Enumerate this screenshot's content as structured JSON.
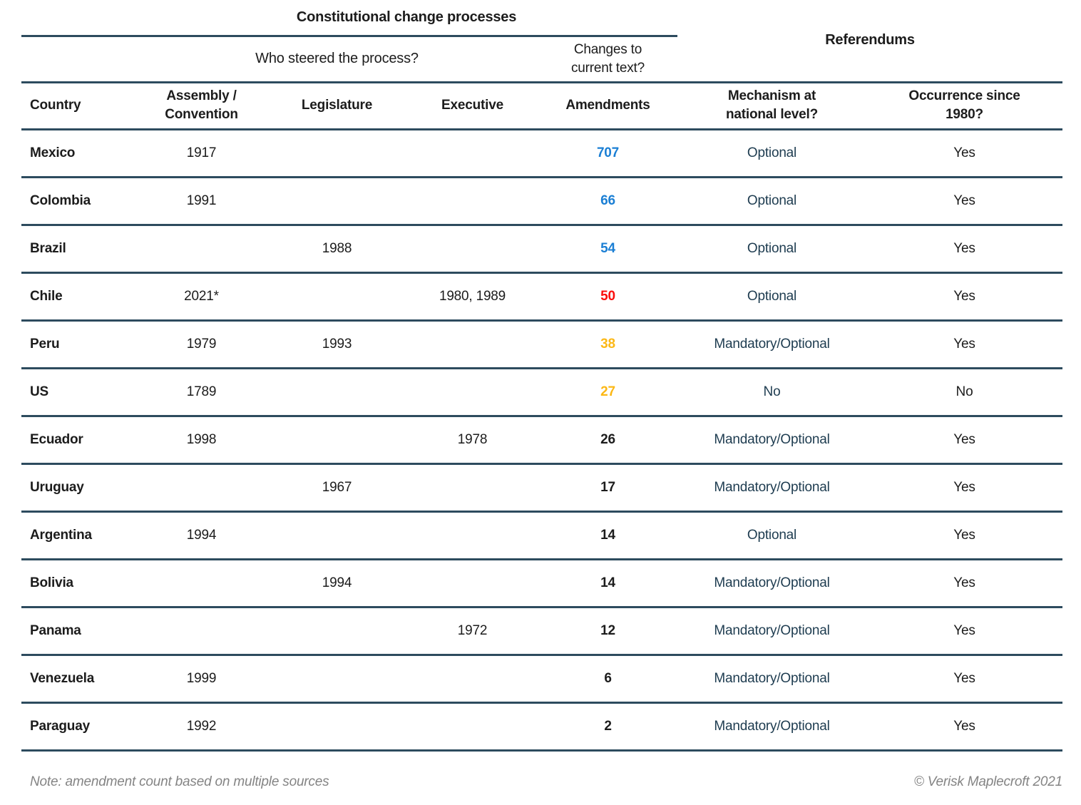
{
  "table": {
    "group_headers": {
      "constitutional": "Constitutional change processes",
      "referendums": "Referendums",
      "who_steered": "Who steered the process?",
      "changes_to_text": "Changes to\ncurrent text?"
    },
    "columns": [
      "Country",
      "Assembly /\nConvention",
      "Legislature",
      "Executive",
      "Amendments",
      "Mechanism at\nnational level?",
      "Occurrence since\n1980?"
    ],
    "rows": [
      {
        "country": "Mexico",
        "assembly": "1917",
        "legislature": "",
        "executive": "",
        "amendments": "707",
        "amendments_color": "blue",
        "mechanism": "Optional",
        "occurrence": "Yes"
      },
      {
        "country": "Colombia",
        "assembly": "1991",
        "legislature": "",
        "executive": "",
        "amendments": "66",
        "amendments_color": "blue",
        "mechanism": "Optional",
        "occurrence": "Yes"
      },
      {
        "country": "Brazil",
        "assembly": "",
        "legislature": "1988",
        "executive": "",
        "amendments": "54",
        "amendments_color": "blue",
        "mechanism": "Optional",
        "occurrence": "Yes"
      },
      {
        "country": "Chile",
        "assembly": "2021*",
        "legislature": "",
        "executive": "1980, 1989",
        "amendments": "50",
        "amendments_color": "red",
        "mechanism": "Optional",
        "occurrence": "Yes"
      },
      {
        "country": "Peru",
        "assembly": "1979",
        "legislature": "1993",
        "executive": "",
        "amendments": "38",
        "amendments_color": "amber",
        "mechanism": "Mandatory/Optional",
        "occurrence": "Yes"
      },
      {
        "country": "US",
        "assembly": "1789",
        "legislature": "",
        "executive": "",
        "amendments": "27",
        "amendments_color": "amber",
        "mechanism": "No",
        "occurrence": "No"
      },
      {
        "country": "Ecuador",
        "assembly": "1998",
        "legislature": "",
        "executive": "1978",
        "amendments": "26",
        "amendments_color": "black",
        "mechanism": "Mandatory/Optional",
        "occurrence": "Yes"
      },
      {
        "country": "Uruguay",
        "assembly": "",
        "legislature": "1967",
        "executive": "",
        "amendments": "17",
        "amendments_color": "black",
        "mechanism": "Mandatory/Optional",
        "occurrence": "Yes"
      },
      {
        "country": "Argentina",
        "assembly": "1994",
        "legislature": "",
        "executive": "",
        "amendments": "14",
        "amendments_color": "black",
        "mechanism": "Optional",
        "occurrence": "Yes"
      },
      {
        "country": "Bolivia",
        "assembly": "",
        "legislature": "1994",
        "executive": "",
        "amendments": "14",
        "amendments_color": "black",
        "mechanism": "Mandatory/Optional",
        "occurrence": "Yes"
      },
      {
        "country": "Panama",
        "assembly": "",
        "legislature": "",
        "executive": "1972",
        "amendments": "12",
        "amendments_color": "black",
        "mechanism": "Mandatory/Optional",
        "occurrence": "Yes"
      },
      {
        "country": "Venezuela",
        "assembly": "1999",
        "legislature": "",
        "executive": "",
        "amendments": "6",
        "amendments_color": "black",
        "mechanism": "Mandatory/Optional",
        "occurrence": "Yes"
      },
      {
        "country": "Paraguay",
        "assembly": "1992",
        "legislature": "",
        "executive": "",
        "amendments": "2",
        "amendments_color": "black",
        "mechanism": "Mandatory/Optional",
        "occurrence": "Yes"
      }
    ]
  },
  "footer": {
    "note": "Note: amendment count based on multiple sources",
    "copyright": "© Verisk Maplecroft 2021"
  },
  "colors": {
    "blue": "#1b7fd4",
    "red": "#fb0d0c",
    "amber": "#fcb816",
    "black": "#1c1c1c",
    "navy_mechanism_text": "#1e3c50",
    "rule_line": "#2d4b5e",
    "footer_gray": "#848484"
  },
  "chart_data": {
    "type": "table",
    "title": "Constitutional change processes",
    "group_headers": [
      {
        "label": "Constitutional change processes",
        "span": [
          "Country",
          "Assembly / Convention",
          "Legislature",
          "Executive",
          "Amendments"
        ]
      },
      {
        "label": "Referendums",
        "span": [
          "Mechanism at national level?",
          "Occurrence since 1980?"
        ]
      }
    ],
    "sub_headers": [
      {
        "label": "Who steered the process?",
        "span": [
          "Assembly / Convention",
          "Legislature",
          "Executive"
        ]
      },
      {
        "label": "Changes to current text?",
        "span": [
          "Amendments"
        ]
      }
    ],
    "columns": [
      "Country",
      "Assembly / Convention",
      "Legislature",
      "Executive",
      "Amendments",
      "Mechanism at national level?",
      "Occurrence since 1980?"
    ],
    "rows": [
      [
        "Mexico",
        "1917",
        "",
        "",
        "707",
        "Optional",
        "Yes"
      ],
      [
        "Colombia",
        "1991",
        "",
        "",
        "66",
        "Optional",
        "Yes"
      ],
      [
        "Brazil",
        "",
        "1988",
        "",
        "54",
        "Optional",
        "Yes"
      ],
      [
        "Chile",
        "2021*",
        "",
        "1980, 1989",
        "50",
        "Optional",
        "Yes"
      ],
      [
        "Peru",
        "1979",
        "1993",
        "",
        "38",
        "Mandatory/Optional",
        "Yes"
      ],
      [
        "US",
        "1789",
        "",
        "",
        "27",
        "No",
        "No"
      ],
      [
        "Ecuador",
        "1998",
        "",
        "1978",
        "26",
        "Mandatory/Optional",
        "Yes"
      ],
      [
        "Uruguay",
        "",
        "1967",
        "",
        "17",
        "Mandatory/Optional",
        "Yes"
      ],
      [
        "Argentina",
        "1994",
        "",
        "",
        "14",
        "Optional",
        "Yes"
      ],
      [
        "Bolivia",
        "",
        "1994",
        "",
        "14",
        "Mandatory/Optional",
        "Yes"
      ],
      [
        "Panama",
        "",
        "",
        "1972",
        "12",
        "Mandatory/Optional",
        "Yes"
      ],
      [
        "Venezuela",
        "1999",
        "",
        "",
        "6",
        "Mandatory/Optional",
        "Yes"
      ],
      [
        "Paraguay",
        "1992",
        "",
        "",
        "2",
        "Mandatory/Optional",
        "Yes"
      ]
    ],
    "amendments_value_colors": {
      "Mexico": "#1b7fd4",
      "Colombia": "#1b7fd4",
      "Brazil": "#1b7fd4",
      "Chile": "#fb0d0c",
      "Peru": "#fcb816",
      "US": "#fcb816",
      "Ecuador": "#1c1c1c",
      "Uruguay": "#1c1c1c",
      "Argentina": "#1c1c1c",
      "Bolivia": "#1c1c1c",
      "Panama": "#1c1c1c",
      "Venezuela": "#1c1c1c",
      "Paraguay": "#1c1c1c"
    },
    "note": "Note: amendment count based on multiple sources",
    "source": "© Verisk Maplecroft 2021"
  }
}
